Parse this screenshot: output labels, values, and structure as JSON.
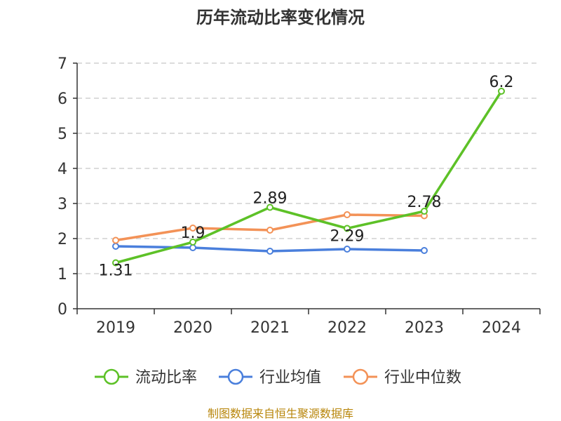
{
  "chart_data": {
    "type": "line",
    "title": "历年流动比率变化情况",
    "categories": [
      "2019",
      "2020",
      "2021",
      "2022",
      "2023",
      "2024"
    ],
    "ylim": [
      0,
      7
    ],
    "yticks": [
      "0",
      "1",
      "2",
      "3",
      "4",
      "5",
      "6",
      "7"
    ],
    "grid": true,
    "legend_position": "bottom",
    "series": [
      {
        "name": "流动比率",
        "color": "#5dc127",
        "values": [
          1.31,
          1.9,
          2.89,
          2.29,
          2.78,
          6.2
        ],
        "labels": [
          "1.31",
          "1.9",
          "2.89",
          "2.29",
          "2.78",
          "6.2"
        ]
      },
      {
        "name": "行业均值",
        "color": "#4a7fdc",
        "values": [
          1.78,
          1.74,
          1.64,
          1.7,
          1.66,
          null
        ]
      },
      {
        "name": "行业中位数",
        "color": "#f39257",
        "values": [
          1.95,
          2.3,
          2.24,
          2.68,
          2.65,
          null
        ]
      }
    ],
    "source": "制图数据来自恒生聚源数据库"
  }
}
